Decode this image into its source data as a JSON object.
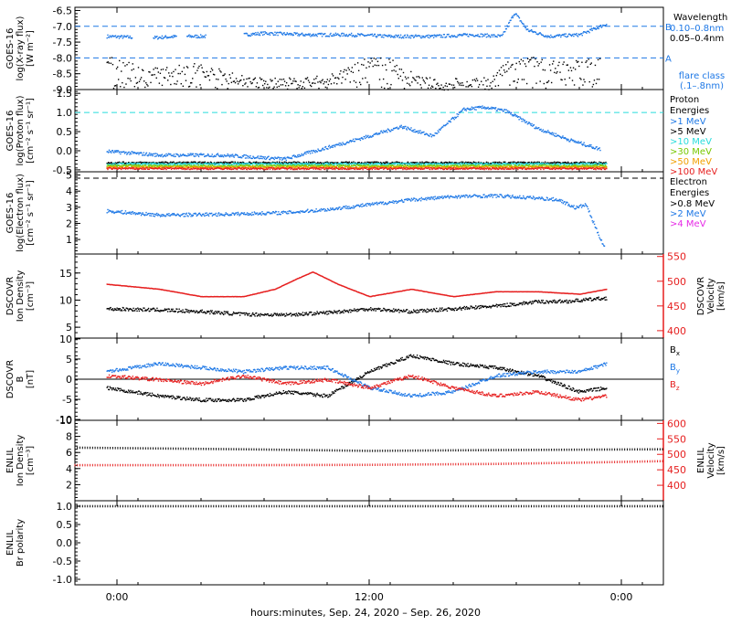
{
  "xaxis": {
    "label": "hours:minutes, Sep. 24, 2020 – Sep. 26, 2020",
    "ticks": [
      {
        "hour": 0,
        "label": "0:00"
      },
      {
        "hour": 12,
        "label": "12:00"
      },
      {
        "hour": 24,
        "label": "0:00"
      }
    ],
    "range_hours": [
      -2.0,
      26.0
    ]
  },
  "colors": {
    "black": "#000000",
    "blue": "#1e78e6",
    "cyan": "#28dcdc",
    "green": "#78c800",
    "orange": "#f0a000",
    "red": "#e61e1e",
    "magenta": "#e628e6"
  },
  "chart_data": [
    {
      "type": "scatter",
      "ylabel": [
        "GOES-16",
        "log(X-ray flux)",
        "[W m⁻²]"
      ],
      "ylim": [
        -9.0,
        -6.4
      ],
      "yticks": [
        "-6.5",
        "-7.0",
        "-7.5",
        "-8.0",
        "-8.5",
        "-9.0"
      ],
      "ytick_values": [
        -6.5,
        -7.0,
        -7.5,
        -8.0,
        -8.5,
        -9.0
      ],
      "right_letters": [
        {
          "text": "B",
          "y": -7.0
        },
        {
          "text": "A",
          "y": -8.0
        }
      ],
      "reference_lines": [
        -7.0,
        -8.0
      ],
      "legend": {
        "title": "Wavelength",
        "entries": [
          {
            "text": "0.10–0.8nm",
            "color": "blue"
          },
          {
            "text": "0.05–0.4nm",
            "color": "black"
          }
        ],
        "footer": [
          "flare class",
          "(.1–.8nm)"
        ]
      },
      "series": [
        {
          "name": "0.10–0.8nm",
          "color": "blue",
          "x": [
            -0.5,
            1.5,
            3.0,
            5.0,
            7.0,
            9.0,
            11.0,
            13.0,
            15.0,
            17.0,
            18.3,
            18.9,
            19.5,
            20.5,
            22.0,
            23.3
          ],
          "y": [
            -7.3,
            -7.35,
            -7.3,
            -7.3,
            -7.2,
            -7.25,
            -7.25,
            -7.3,
            -7.3,
            -7.25,
            -7.3,
            -6.55,
            -7.1,
            -7.3,
            -7.25,
            -6.9
          ]
        },
        {
          "name": "0.05–0.4nm",
          "color": "black",
          "x": [
            -0.5,
            0.5,
            1.5,
            3.5,
            5.5,
            7.0,
            8.5,
            10.0,
            11.0,
            12.0,
            13.0,
            14.5,
            16.0,
            17.5,
            18.5,
            19.5,
            21.0,
            23.0
          ],
          "y": [
            -8.1,
            -8.3,
            -8.5,
            -8.3,
            -8.6,
            -8.8,
            -8.8,
            -8.7,
            -8.4,
            -8.1,
            -8.2,
            -8.8,
            -8.9,
            -8.9,
            -8.3,
            -8.1,
            -8.3,
            -8.1
          ]
        }
      ]
    },
    {
      "type": "scatter",
      "ylabel": [
        "GOES-16",
        "log(Proton flux)",
        "[cm⁻² s⁻¹ sr⁻¹]"
      ],
      "ylim": [
        -0.55,
        1.6
      ],
      "yticks": [
        "1.5",
        "1.0",
        "0.5",
        "0.0",
        "-0.5"
      ],
      "ytick_values": [
        1.5,
        1.0,
        0.5,
        0.0,
        -0.5
      ],
      "reference_lines": [
        1.0
      ],
      "legend": {
        "title": "Proton Energies",
        "entries": [
          {
            "text": ">1 MeV",
            "color": "blue"
          },
          {
            "text": ">5 MeV",
            "color": "black"
          },
          {
            "text": ">10 MeV",
            "color": "cyan"
          },
          {
            "text": ">30 MeV",
            "color": "green"
          },
          {
            "text": ">50 MeV",
            "color": "orange"
          },
          {
            "text": ">100 MeV",
            "color": "red"
          }
        ]
      },
      "series": [
        {
          "name": ">1 MeV",
          "color": "blue",
          "x": [
            -0.5,
            2.0,
            5.0,
            8.0,
            10.0,
            12.0,
            13.5,
            15.0,
            16.5,
            17.5,
            18.5,
            20.0,
            21.5,
            23.0
          ],
          "y": [
            0.0,
            -0.1,
            -0.1,
            -0.2,
            0.1,
            0.4,
            0.65,
            0.4,
            1.1,
            1.15,
            1.05,
            0.6,
            0.3,
            0.05
          ]
        },
        {
          "name": ">5 MeV",
          "color": "black",
          "x": [
            -0.5,
            6.0,
            12.0,
            18.0,
            23.3
          ],
          "y": [
            -0.3,
            -0.3,
            -0.3,
            -0.3,
            -0.3
          ]
        },
        {
          "name": ">10 MeV",
          "color": "cyan",
          "x": [
            -0.5,
            6.0,
            12.0,
            18.0,
            23.3
          ],
          "y": [
            -0.33,
            -0.33,
            -0.33,
            -0.33,
            -0.33
          ]
        },
        {
          "name": ">30 MeV",
          "color": "green",
          "x": [
            -0.5,
            6.0,
            12.0,
            18.0,
            23.3
          ],
          "y": [
            -0.38,
            -0.38,
            -0.38,
            -0.38,
            -0.38
          ]
        },
        {
          "name": ">50 MeV",
          "color": "orange",
          "x": [
            -0.5,
            6.0,
            12.0,
            18.0,
            23.3
          ],
          "y": [
            -0.42,
            -0.42,
            -0.42,
            -0.42,
            -0.42
          ]
        },
        {
          "name": ">100 MeV",
          "color": "red",
          "x": [
            -0.5,
            6.0,
            12.0,
            18.0,
            23.3
          ],
          "y": [
            -0.45,
            -0.45,
            -0.45,
            -0.45,
            -0.45
          ]
        }
      ]
    },
    {
      "type": "scatter",
      "ylabel": [
        "GOES-16",
        "log(Electron flux)",
        "[cm⁻² s⁻¹ sr⁻¹]"
      ],
      "ylim": [
        0.1,
        5.2
      ],
      "yticks": [
        "5",
        "4",
        "3",
        "2",
        "1"
      ],
      "ytick_values": [
        5,
        4,
        3,
        2,
        1
      ],
      "reference_lines": [
        4.8
      ],
      "legend": {
        "title": "Electron Energies",
        "entries": [
          {
            "text": ">0.8 MeV",
            "color": "black"
          },
          {
            "text": ">2 MeV",
            "color": "blue"
          },
          {
            "text": ">4 MeV",
            "color": "magenta"
          }
        ]
      },
      "series": [
        {
          "name": ">2 MeV",
          "color": "blue",
          "x": [
            -0.5,
            2.0,
            5.0,
            8.0,
            10.0,
            12.0,
            14.0,
            16.0,
            18.0,
            20.0,
            21.0,
            21.8,
            22.3,
            22.8,
            23.2
          ],
          "y": [
            2.8,
            2.55,
            2.6,
            2.7,
            2.9,
            3.2,
            3.5,
            3.7,
            3.75,
            3.6,
            3.5,
            3.0,
            3.2,
            1.6,
            0.5
          ]
        }
      ]
    },
    {
      "type": "scatter",
      "ylabel": [
        "DSCOVR",
        "Ion Density",
        "[cm⁻³]"
      ],
      "ylim": [
        3.0,
        18.5
      ],
      "yticks": [
        "15",
        "10",
        "5"
      ],
      "ytick_values": [
        15,
        10,
        5
      ],
      "right_axis": {
        "label": [
          "DSCOVR",
          "Velocity",
          "[km/s]"
        ],
        "ylim": [
          385,
          555
        ],
        "yticks": [
          "550",
          "500",
          "450",
          "400"
        ],
        "ytick_values": [
          550,
          500,
          450,
          400
        ]
      },
      "series": [
        {
          "name": "Ion Density",
          "color": "black",
          "axis": "left",
          "x": [
            -0.5,
            2.0,
            4.0,
            6.0,
            8.0,
            10.0,
            12.0,
            14.0,
            16.0,
            18.0,
            20.0,
            21.5,
            23.3
          ],
          "y": [
            8.5,
            8.3,
            8.0,
            7.5,
            7.4,
            7.8,
            8.5,
            8.0,
            8.5,
            9.0,
            9.8,
            9.9,
            10.5
          ]
        },
        {
          "name": "Velocity",
          "color": "red",
          "axis": "right",
          "x": [
            -0.5,
            2.0,
            4.0,
            6.0,
            7.5,
            8.5,
            9.3,
            10.5,
            12.0,
            14.0,
            16.0,
            18.0,
            20.0,
            22.0,
            23.3
          ],
          "y": [
            495,
            485,
            470,
            470,
            485,
            505,
            520,
            495,
            470,
            485,
            470,
            480,
            480,
            475,
            485
          ]
        }
      ]
    },
    {
      "type": "scatter",
      "ylabel": [
        "DSCOVR",
        "B",
        "[nT]"
      ],
      "ylim": [
        -10.2,
        10.2
      ],
      "yticks": [
        "10",
        "5",
        "0",
        "-5",
        "-10"
      ],
      "ytick_values": [
        10,
        5,
        0,
        -5,
        -10
      ],
      "reference_lines": [
        0
      ],
      "legend": {
        "entries": [
          {
            "text": "Bx",
            "color": "black"
          },
          {
            "text": "By",
            "color": "blue"
          },
          {
            "text": "Bz",
            "color": "red"
          }
        ]
      },
      "series": [
        {
          "name": "Bx",
          "color": "black",
          "x": [
            -0.5,
            2.0,
            4.0,
            6.0,
            8.0,
            10.0,
            12.0,
            14.0,
            16.0,
            18.0,
            20.0,
            22.0,
            23.3
          ],
          "y": [
            -2,
            -4,
            -5,
            -5,
            -3,
            -4,
            2,
            6,
            4,
            3,
            1,
            -3,
            -2
          ]
        },
        {
          "name": "By",
          "color": "blue",
          "x": [
            -0.5,
            2.0,
            4.0,
            6.0,
            8.0,
            10.0,
            12.0,
            14.0,
            16.0,
            18.0,
            20.0,
            22.0,
            23.3
          ],
          "y": [
            2,
            4,
            3,
            2,
            3,
            3,
            -2,
            -4,
            -3,
            1,
            2,
            2,
            4
          ]
        },
        {
          "name": "Bz",
          "color": "red",
          "x": [
            -0.5,
            2.0,
            4.0,
            6.0,
            8.0,
            10.0,
            12.0,
            14.0,
            16.0,
            18.0,
            20.0,
            22.0,
            23.3
          ],
          "y": [
            1,
            0,
            -1,
            1,
            -1,
            0,
            -2,
            1,
            -2,
            -4,
            -3,
            -5,
            -4
          ]
        }
      ]
    },
    {
      "type": "line",
      "ylabel": [
        "ENLIL",
        "Ion Density",
        "[cm⁻³]"
      ],
      "ylim": [
        0.0,
        10.0
      ],
      "yticks": [
        "10",
        "8",
        "6",
        "4",
        "2"
      ],
      "ytick_values": [
        10,
        8,
        6,
        4,
        2
      ],
      "right_axis": {
        "label": [
          "ENLIL",
          "Velocity",
          "[km/s]"
        ],
        "ylim": [
          350,
          610
        ],
        "yticks": [
          "600",
          "550",
          "500",
          "450",
          "400"
        ],
        "ytick_values": [
          600,
          550,
          500,
          450,
          400
        ]
      },
      "series": [
        {
          "name": "Ion Density",
          "color": "black",
          "axis": "left",
          "x": [
            -2.0,
            6.0,
            12.0,
            18.0,
            26.0
          ],
          "y": [
            6.6,
            6.4,
            6.2,
            6.3,
            6.4
          ]
        },
        {
          "name": "Velocity",
          "color": "red",
          "axis": "right",
          "x": [
            -2.0,
            6.0,
            12.0,
            18.0,
            22.0,
            26.0
          ],
          "y": [
            465,
            465,
            466,
            469,
            473,
            478
          ]
        }
      ]
    },
    {
      "type": "line",
      "ylabel": [
        "ENLIL",
        "Br polarity"
      ],
      "ylim": [
        -1.15,
        1.15
      ],
      "yticks": [
        "1.0",
        "0.5",
        "0.0",
        "-0.5",
        "-1.0"
      ],
      "ytick_values": [
        1.0,
        0.5,
        0.0,
        -0.5,
        -1.0
      ],
      "series": [
        {
          "name": "Br polarity",
          "color": "black",
          "axis": "left",
          "x": [
            -2.0,
            26.0
          ],
          "y": [
            1.0,
            1.0
          ]
        }
      ]
    }
  ]
}
